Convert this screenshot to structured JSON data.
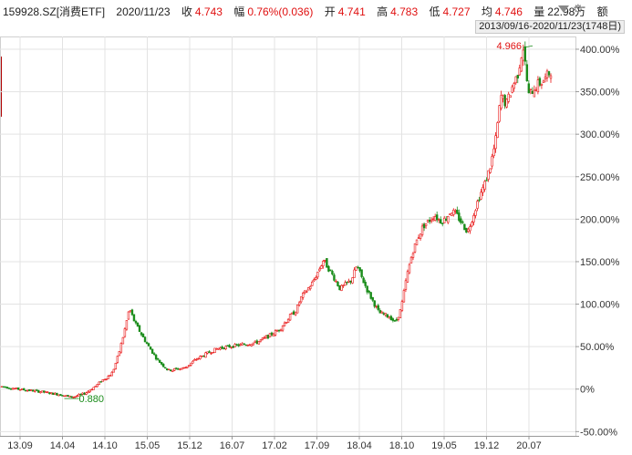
{
  "header": {
    "code": "159928.SZ[消费ETF]",
    "date": "2020/11/23",
    "close_label": "收",
    "close": "4.743",
    "chg_label": "幅",
    "chg": "0.76%(0.036)",
    "open_label": "开",
    "open": "4.741",
    "high_label": "高",
    "high": "4.783",
    "low_label": "低",
    "low": "4.727",
    "avg_label": "均",
    "avg": "4.746",
    "vol_label": "量",
    "vol": "22.98万",
    "amt_label": "额",
    "range": "2013/09/16-2020/11/23(1748日)",
    "settings_icon": "gear-icon",
    "dropdown_icon": "triangle-down-icon"
  },
  "chart_data": {
    "type": "candlestick",
    "y_unit": "percent",
    "ylim": [
      -55,
      415
    ],
    "yticks": [
      -50,
      0,
      50,
      100,
      150,
      200,
      250,
      300,
      350,
      400
    ],
    "ytick_labels": [
      "-50.00%",
      "0%",
      "50.00%",
      "100.00%",
      "150.00%",
      "200.00%",
      "250.00%",
      "300.00%",
      "350.00%",
      "400.00%"
    ],
    "xtick_labels": [
      "13.09",
      "14.04",
      "14.10",
      "15.05",
      "15.12",
      "16.07",
      "17.02",
      "17.09",
      "18.04",
      "18.10",
      "19.05",
      "19.12",
      "20.07"
    ],
    "grid": true,
    "annotations": [
      {
        "text": "0.880",
        "x": "14.04",
        "y": -10,
        "kind": "min"
      },
      {
        "text": "4.966",
        "x": "20.07",
        "y": 404,
        "kind": "max"
      }
    ],
    "colors": {
      "up": "#e81010",
      "down": "#1a8c1a",
      "grid": "#e3e3e3",
      "max_text": "#e01010",
      "min_text": "#1a8c1a"
    },
    "trend": {
      "x_index": [
        0,
        3,
        7,
        9,
        11,
        12,
        13,
        15,
        17,
        18,
        19,
        20,
        21,
        22,
        23,
        24,
        26,
        28,
        30,
        33,
        35,
        37,
        39,
        41,
        43,
        46,
        48,
        50,
        51,
        52,
        53,
        54,
        56,
        57,
        58,
        60,
        61,
        63,
        64,
        66,
        68,
        70,
        71,
        72,
        73,
        74,
        75,
        76,
        77,
        78,
        79,
        80,
        81,
        82,
        83,
        84,
        85,
        86,
        87,
        88,
        89,
        90,
        91,
        92,
        93,
        94,
        95,
        96,
        97,
        98,
        99
      ],
      "y": [
        3,
        0,
        -3,
        -5,
        -7,
        -9,
        -9,
        -5,
        4,
        10,
        14,
        20,
        40,
        65,
        95,
        78,
        55,
        35,
        22,
        25,
        35,
        42,
        48,
        50,
        52,
        55,
        62,
        70,
        78,
        86,
        92,
        108,
        125,
        138,
        152,
        130,
        118,
        128,
        145,
        115,
        90,
        85,
        78,
        95,
        132,
        160,
        178,
        192,
        198,
        205,
        198,
        200,
        210,
        205,
        195,
        185,
        205,
        225,
        240,
        260,
        290,
        345,
        335,
        355,
        370,
        404,
        345,
        355,
        360,
        365,
        375
      ]
    }
  }
}
